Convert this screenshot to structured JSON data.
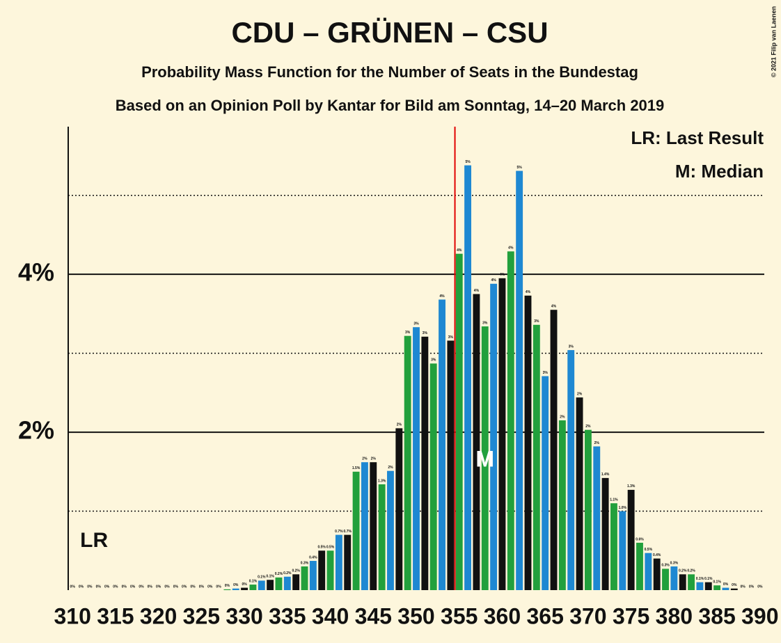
{
  "chart_data": {
    "type": "bar",
    "title": "CDU – GRÜNEN – CSU",
    "subtitle": "Probability Mass Function for the Number of Seats in the Bundestag",
    "subtitle2": "Based on an Opinion Poll by Kantar for Bild am Sonntag, 14–20 March 2019",
    "copyright": "© 2021 Filip van Laenen",
    "legend": [
      "LR: Last Result",
      "M: Median"
    ],
    "markers": [
      {
        "label": "LR",
        "x": 310
      },
      {
        "label": "M",
        "x": 358
      }
    ],
    "majority_line": 354.5,
    "x": [
      310,
      311,
      312,
      313,
      314,
      315,
      316,
      317,
      318,
      319,
      320,
      321,
      322,
      323,
      324,
      325,
      326,
      327,
      328,
      329,
      330,
      331,
      332,
      333,
      334,
      335,
      336,
      337,
      338,
      339,
      340,
      341,
      342,
      343,
      344,
      345,
      346,
      347,
      348,
      349,
      350,
      351,
      352,
      353,
      354,
      355,
      356,
      357,
      358,
      359,
      360,
      361,
      362,
      363,
      364,
      365,
      366,
      367,
      368,
      369,
      370,
      371,
      372,
      373,
      374,
      375,
      376,
      377,
      378,
      379,
      380,
      381,
      382,
      383,
      384,
      385,
      386,
      387,
      388,
      389,
      390
    ],
    "values": [
      0,
      0,
      0,
      0,
      0,
      0,
      0,
      0,
      0,
      0,
      0,
      0,
      0,
      0,
      0,
      0,
      0,
      0,
      0.01,
      0.02,
      0.03,
      0.07,
      0.12,
      0.13,
      0.16,
      0.17,
      0.2,
      0.3,
      0.37,
      0.5,
      0.5,
      0.7,
      0.7,
      1.5,
      1.62,
      1.62,
      1.34,
      1.51,
      2.05,
      3.22,
      3.33,
      3.21,
      2.87,
      3.68,
      3.16,
      4.26,
      5.38,
      3.75,
      3.34,
      3.88,
      3.95,
      4.29,
      5.31,
      3.73,
      3.36,
      2.71,
      3.55,
      2.15,
      3.04,
      2.44,
      2.03,
      1.82,
      1.42,
      1.1,
      1.0,
      1.27,
      0.6,
      0.47,
      0.4,
      0.27,
      0.3,
      0.2,
      0.2,
      0.1,
      0.1,
      0.06,
      0.03,
      0.02,
      0,
      0,
      0
    ],
    "value_labels": [
      "0%",
      "0%",
      "0%",
      "0%",
      "0%",
      "0%",
      "0%",
      "0%",
      "0%",
      "0%",
      "0%",
      "0%",
      "0%",
      "0%",
      "0%",
      "0%",
      "0%",
      "0%",
      "0%",
      "0%",
      "0%",
      "0.1%",
      "0.1%",
      "0.1%",
      "0.2%",
      "0.2%",
      "0.2%",
      "0.3%",
      "0.4%",
      "0.5%",
      "0.5%",
      "0.7%",
      "0.7%",
      "1.5%",
      "2%",
      "2%",
      "1.3%",
      "2%",
      "2%",
      "3%",
      "3%",
      "3%",
      "3%",
      "4%",
      "3%",
      "4%",
      "5%",
      "4%",
      "3%",
      "4%",
      "4%",
      "4%",
      "5%",
      "4%",
      "3%",
      "3%",
      "4%",
      "2%",
      "3%",
      "2%",
      "2%",
      "2%",
      "1.4%",
      "1.1%",
      "1.0%",
      "1.3%",
      "0.6%",
      "0.5%",
      "0.4%",
      "0.3%",
      "0.3%",
      "0.2%",
      "0.2%",
      "0.1%",
      "0.1%",
      "0.1%",
      "0%",
      "0%",
      "0%",
      "0%",
      "0%"
    ],
    "colors": [
      "#22a03c",
      "#1e88d2",
      "#111111"
    ],
    "xlim": [
      309.5,
      390.5
    ],
    "xticks": [
      310,
      315,
      320,
      325,
      330,
      335,
      340,
      345,
      350,
      355,
      360,
      365,
      370,
      375,
      380,
      385,
      390
    ],
    "ylim": [
      0,
      5.87
    ],
    "yticks": [
      {
        "value": 2,
        "label": "2%"
      },
      {
        "value": 4,
        "label": "4%"
      }
    ],
    "minor_yticks": [
      1,
      3,
      5
    ],
    "grid": true
  }
}
